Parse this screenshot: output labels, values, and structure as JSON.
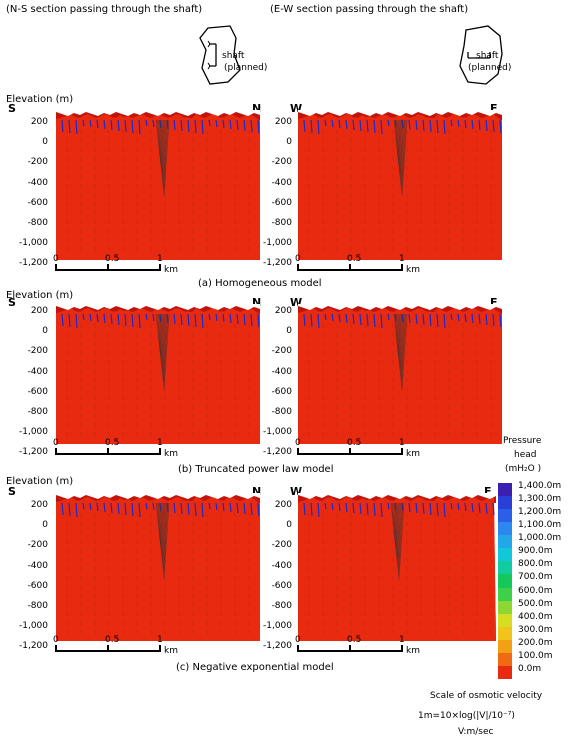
{
  "headers": {
    "ns": "(N-S section passing through the shaft)",
    "ew": "(E-W section passing through the shaft)"
  },
  "inset": {
    "label1": "shaft",
    "label2": "(planned)"
  },
  "elevation_label": "Elevation (m)",
  "elevation_ticks": [
    "200",
    "0",
    "-200",
    "-400",
    "-600",
    "-800",
    "-1,000",
    "-1,200"
  ],
  "directions": {
    "s": "S",
    "n": "N",
    "w": "W",
    "e": "E"
  },
  "scale": {
    "zero": "0",
    "half": "0.5",
    "one": "1",
    "unit": "km"
  },
  "captions": {
    "a": "(a) Homogeneous model",
    "b": "(b) Truncated power law model",
    "c": "(c) Negative exponential model"
  },
  "legend": {
    "title1": "Pressure",
    "title2": "head",
    "title3": "(mH₂O )",
    "levels": [
      "1,400.0m",
      "1,300.0m",
      "1,200.0m",
      "1,100.0m",
      "1,000.0m",
      "900.0m",
      "800.0m",
      "700.0m",
      "600.0m",
      "500.0m",
      "400.0m",
      "300.0m",
      "200.0m",
      "100.0m",
      "0.0m"
    ],
    "colors": [
      "#3a1fb0",
      "#2a3fd8",
      "#2c5fe8",
      "#2a88ee",
      "#22a8e8",
      "#10c8d8",
      "#10cca0",
      "#14c85a",
      "#3ed04a",
      "#8ed630",
      "#d6de22",
      "#f0c418",
      "#f4a014",
      "#f06a12",
      "#e82a10"
    ]
  },
  "osmotic": {
    "line1": "Scale of osmotic velocity",
    "line2": "1m=10×log(|V|/10⁻⁷)",
    "line3": "V:m/sec"
  }
}
